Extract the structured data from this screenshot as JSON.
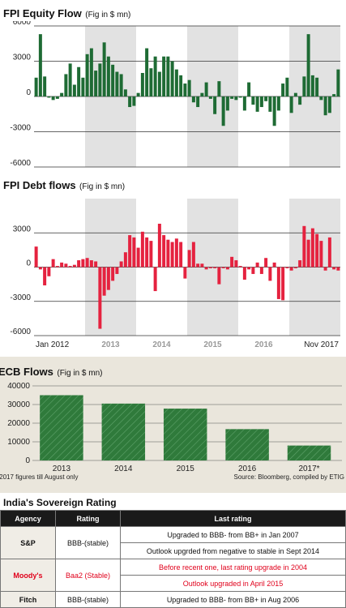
{
  "equity": {
    "title": "FPI Equity Flow",
    "unit": "(Fig in $ mn)"
  },
  "debt": {
    "title": "FPI Debt flows",
    "unit": "(Fig in $ mn)"
  },
  "ecb": {
    "title": "ECB Flows",
    "unit": "(Fig in $ mn)",
    "footnote": "*2017 figures till August only",
    "source": "Source: Bloomberg, compiled by ETIG"
  },
  "rating": {
    "title": "India's Sovereign Rating",
    "headers": [
      "Agency",
      "Rating",
      "Last rating"
    ],
    "rows": [
      {
        "agency": "S&P",
        "rating": "BBB-(stable)",
        "notes": [
          "Upgraded to BBB- from BB+ in Jan 2007",
          "Outlook upgrded from negative to stable in Sept 2014"
        ],
        "highlight": false
      },
      {
        "agency": "Moody's",
        "rating": "Baa2 (Stable)",
        "notes": [
          "Before recent one, last rating upgrade in 2004",
          "Outlook upgraded in April 2015"
        ],
        "highlight": true
      },
      {
        "agency": "Fitch",
        "rating": "BBB-(stable)",
        "notes": [
          "Upgraded to BBB- from BB+ in Aug 2006"
        ],
        "highlight": false
      }
    ]
  },
  "chart_data": [
    {
      "type": "bar",
      "title": "FPI Equity Flow (Fig in $ mn)",
      "ylim": [
        -6000,
        6000
      ],
      "yticks": [
        6000,
        3000,
        0,
        -3000,
        -6000
      ],
      "grid": true,
      "color": "#1e6b34",
      "x_start": "Jan 2012",
      "x_end": "Nov 2017",
      "values": [
        1600,
        5300,
        1700,
        -100,
        -300,
        -200,
        300,
        1900,
        2800,
        1000,
        2500,
        1600,
        3600,
        4100,
        2200,
        2800,
        4600,
        3400,
        2700,
        2100,
        1900,
        600,
        -900,
        -800,
        300,
        2000,
        4100,
        2400,
        3400,
        2100,
        3400,
        3400,
        3000,
        2300,
        1800,
        1100,
        1400,
        -500,
        -900,
        300,
        1200,
        -200,
        -1500,
        1300,
        -2500,
        -1200,
        -200,
        -300,
        -100,
        -1200,
        1200,
        -700,
        -1300,
        -900,
        -400,
        -1300,
        -2500,
        -1200,
        1100,
        1600,
        -1400,
        300,
        -700,
        1700,
        5300,
        1800,
        1600,
        -300,
        -1600,
        -1400,
        200,
        2300
      ],
      "year_labels": [
        "Jan 2012",
        "2013",
        "2014",
        "2015",
        "2016",
        "Nov 2017"
      ]
    },
    {
      "type": "bar",
      "title": "FPI Debt flows (Fig in $ mn)",
      "ylim": [
        -6000,
        6000
      ],
      "yticks": [
        3000,
        0,
        -3000,
        -6000
      ],
      "grid": true,
      "color": "#e5223f",
      "x_start": "Jan 2012",
      "x_end": "Nov 2017",
      "values": [
        1800,
        -200,
        -1600,
        -800,
        700,
        100,
        400,
        300,
        100,
        200,
        600,
        700,
        800,
        600,
        500,
        -5400,
        -2500,
        -2000,
        -1200,
        -600,
        500,
        1300,
        2800,
        2600,
        1700,
        3100,
        2600,
        2300,
        -2100,
        3800,
        2800,
        2400,
        2200,
        2500,
        2200,
        -1000,
        1500,
        2200,
        300,
        300,
        -200,
        -100,
        -100,
        -1500,
        -100,
        -200,
        900,
        600,
        100,
        -1100,
        -200,
        -600,
        400,
        -600,
        800,
        -1200,
        400,
        -2800,
        -2900,
        -100,
        -300,
        -100,
        600,
        3600,
        2400,
        3400,
        2900,
        2300,
        -300,
        2600,
        -200,
        -300
      ],
      "year_labels": [
        "Jan 2012",
        "2013",
        "2014",
        "2015",
        "2016",
        "Nov 2017"
      ]
    },
    {
      "type": "bar",
      "title": "ECB Flows (Fig in $ mn)",
      "categories": [
        "2013",
        "2014",
        "2015",
        "2016",
        "2017*"
      ],
      "values": [
        35000,
        30500,
        27800,
        16800,
        8000
      ],
      "ylim": [
        0,
        40000
      ],
      "yticks": [
        40000,
        30000,
        20000,
        10000,
        0
      ],
      "color": "#2f7a3b",
      "grid": true
    }
  ]
}
